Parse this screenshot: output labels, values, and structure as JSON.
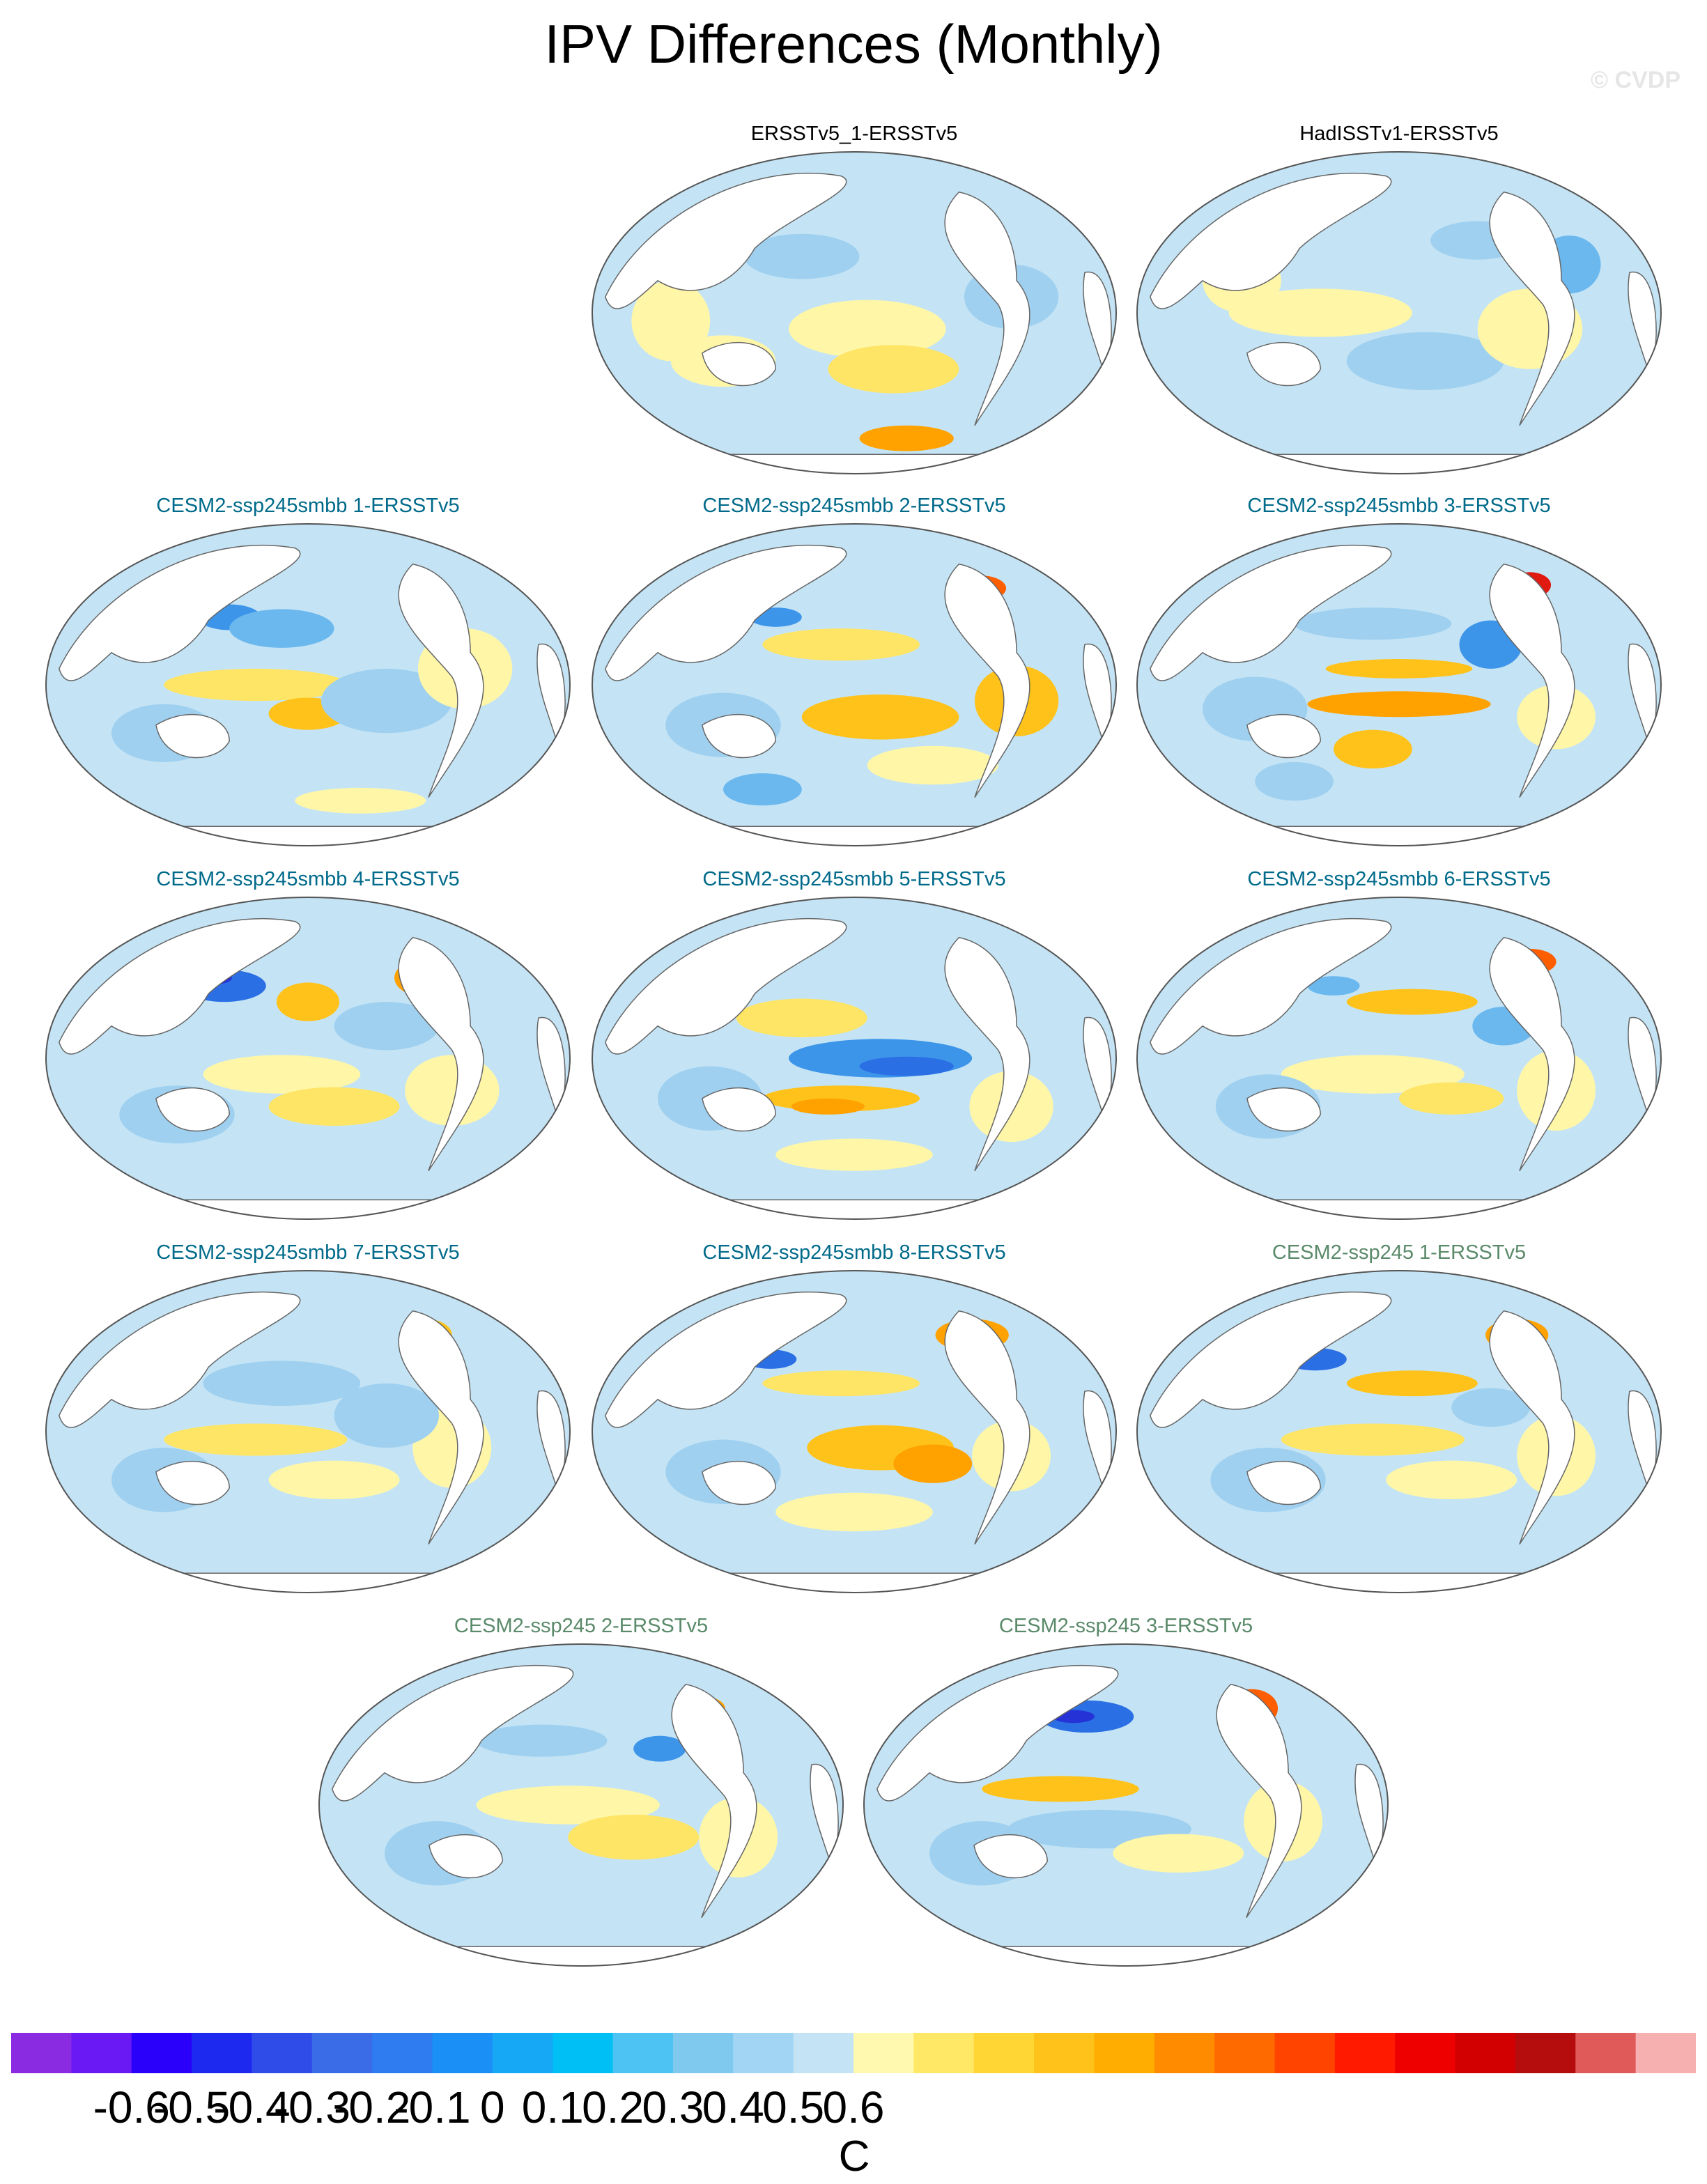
{
  "title": "IPV Differences (Monthly)",
  "watermark": "© CVDP",
  "panels": [
    {
      "label": "ERSSTv5_1-ERSSTv5",
      "color": "#000000",
      "pattern": 0
    },
    {
      "label": "HadISSTv1-ERSSTv5",
      "color": "#000000",
      "pattern": 1
    },
    {
      "label": "CESM2-ssp245smbb 1-ERSSTv5",
      "color": "#006a8a",
      "pattern": 2
    },
    {
      "label": "CESM2-ssp245smbb 2-ERSSTv5",
      "color": "#006a8a",
      "pattern": 3
    },
    {
      "label": "CESM2-ssp245smbb 3-ERSSTv5",
      "color": "#006a8a",
      "pattern": 4
    },
    {
      "label": "CESM2-ssp245smbb 4-ERSSTv5",
      "color": "#006a8a",
      "pattern": 5
    },
    {
      "label": "CESM2-ssp245smbb 5-ERSSTv5",
      "color": "#006a8a",
      "pattern": 6
    },
    {
      "label": "CESM2-ssp245smbb 6-ERSSTv5",
      "color": "#006a8a",
      "pattern": 7
    },
    {
      "label": "CESM2-ssp245smbb 7-ERSSTv5",
      "color": "#006a8a",
      "pattern": 8
    },
    {
      "label": "CESM2-ssp245smbb 8-ERSSTv5",
      "color": "#006a8a",
      "pattern": 9
    },
    {
      "label": "CESM2-ssp245 1-ERSSTv5",
      "color": "#5a8a6a",
      "pattern": 10
    },
    {
      "label": "CESM2-ssp245 2-ERSSTv5",
      "color": "#5a8a6a",
      "pattern": 11
    },
    {
      "label": "CESM2-ssp245 3-ERSSTv5",
      "color": "#5a8a6a",
      "pattern": 12
    }
  ],
  "colorbar": {
    "colors": [
      "#8a2be2",
      "#6a19f5",
      "#2a00fa",
      "#1e29f0",
      "#2f4ce9",
      "#3b6ce8",
      "#2f7bf0",
      "#1a8ff5",
      "#16a7f5",
      "#00bff5",
      "#4cc3f2",
      "#7fc8ee",
      "#a2d5f3",
      "#c4e4f5",
      "#fff9b0",
      "#ffe866",
      "#ffd633",
      "#ffc21a",
      "#ffad00",
      "#ff8c00",
      "#ff6a00",
      "#ff4400",
      "#ff1a00",
      "#ee0000",
      "#d20000",
      "#b50d0d",
      "#e05a5a",
      "#f7b0b0"
    ],
    "ticks": [
      "-0.6",
      "-0.5",
      "-0.4",
      "-0.3",
      "-0.2",
      "-0.1",
      "0",
      "0.1",
      "0.2",
      "0.3",
      "0.4",
      "0.5",
      "0.6"
    ],
    "units": "C"
  }
}
